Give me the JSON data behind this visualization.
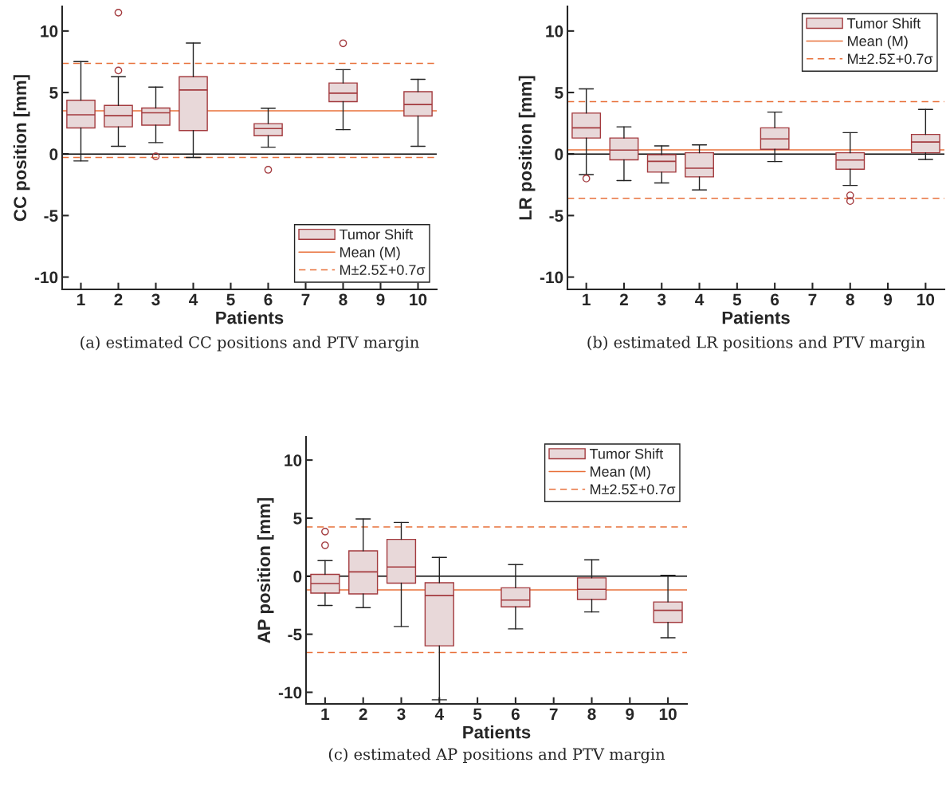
{
  "chart_data": [
    {
      "type": "box",
      "title": "(a) estimated CC positions and PTV margin",
      "xlabel": "Patients",
      "ylabel": "CC position [mm]",
      "categories": [
        "1",
        "2",
        "3",
        "4",
        "5",
        "6",
        "7",
        "8",
        "9",
        "10"
      ],
      "ylim": [
        -11,
        12
      ],
      "yticks": [
        -10,
        -5,
        0,
        5,
        10
      ],
      "legend": "bottom right",
      "grid": false,
      "series": [
        {
          "name": "Tumor Shift",
          "color": "#e8d8d9",
          "boxes": [
            {
              "low": -0.56,
              "q1": 2.12,
              "median": 3.19,
              "q3": 4.37,
              "high": 7.51
            },
            {
              "low": 0.63,
              "q1": 2.21,
              "median": 3.12,
              "q3": 3.95,
              "high": 6.28,
              "outliers": [
                6.79,
                11.49
              ]
            },
            {
              "low": 0.93,
              "q1": 2.35,
              "median": 3.35,
              "q3": 3.74,
              "high": 5.44,
              "outliers": [
                -0.19
              ]
            },
            {
              "low": -0.28,
              "q1": 1.91,
              "median": 5.21,
              "q3": 6.28,
              "high": 9.02
            },
            null,
            {
              "low": 0.56,
              "q1": 1.49,
              "median": 2.07,
              "q3": 2.47,
              "high": 3.72,
              "outliers": [
                -1.28
              ]
            },
            null,
            {
              "low": 1.98,
              "q1": 4.26,
              "median": 4.95,
              "q3": 5.77,
              "high": 6.86,
              "outliers": [
                9.0
              ]
            },
            null,
            {
              "low": 0.63,
              "q1": 3.09,
              "median": 4.02,
              "q3": 5.07,
              "high": 6.07
            }
          ]
        }
      ],
      "ref_lines": [
        {
          "axis": "y",
          "value": 0,
          "color": "#000000",
          "line_style": "solid"
        },
        {
          "axis": "y",
          "value": 3.51,
          "label": "Mean (M)",
          "color": "#e8703a",
          "line_style": "solid"
        },
        {
          "axis": "y",
          "value": 7.37,
          "label": "M±2.5Σ+0.7σ",
          "color": "#e8703a",
          "line_style": "dashed"
        },
        {
          "axis": "y",
          "value": -0.28,
          "color": "#e8703a",
          "line_style": "dashed"
        }
      ]
    },
    {
      "type": "box",
      "title": "(b) estimated LR positions and PTV margin",
      "xlabel": "Patients",
      "ylabel": "LR position [mm]",
      "categories": [
        "1",
        "2",
        "3",
        "4",
        "5",
        "6",
        "7",
        "8",
        "9",
        "10"
      ],
      "ylim": [
        -11,
        12
      ],
      "yticks": [
        -10,
        -5,
        0,
        5,
        10
      ],
      "legend": "top right",
      "grid": false,
      "series": [
        {
          "name": "Tumor Shift",
          "color": "#e8d8d9",
          "boxes": [
            {
              "low": -1.67,
              "q1": 1.3,
              "median": 2.13,
              "q3": 3.33,
              "high": 5.29,
              "outliers": [
                -1.99
              ]
            },
            {
              "low": -2.16,
              "q1": -0.47,
              "median": 0.32,
              "q3": 1.3,
              "high": 2.21
            },
            {
              "low": -2.35,
              "q1": -1.47,
              "median": -0.59,
              "q3": -0.05,
              "high": 0.66
            },
            {
              "low": -2.92,
              "q1": -1.86,
              "median": -1.15,
              "q3": 0.1,
              "high": 0.74
            },
            null,
            {
              "low": -0.61,
              "q1": 0.39,
              "median": 1.23,
              "q3": 2.13,
              "high": 3.41
            },
            null,
            {
              "low": -2.55,
              "q1": -1.23,
              "median": -0.49,
              "q3": 0.1,
              "high": 1.74,
              "outliers": [
                -3.36,
                -3.82
              ]
            },
            null,
            {
              "low": -0.44,
              "q1": 0.1,
              "median": 0.98,
              "q3": 1.59,
              "high": 3.63
            }
          ]
        }
      ],
      "ref_lines": [
        {
          "axis": "y",
          "value": 0,
          "color": "#000000",
          "line_style": "solid"
        },
        {
          "axis": "y",
          "value": 0.34,
          "label": "Mean (M)",
          "color": "#e8703a",
          "line_style": "solid"
        },
        {
          "axis": "y",
          "value": 4.26,
          "label": "M±2.5Σ+0.7σ",
          "color": "#e8703a",
          "line_style": "dashed"
        },
        {
          "axis": "y",
          "value": -3.6,
          "color": "#e8703a",
          "line_style": "dashed"
        }
      ]
    },
    {
      "type": "box",
      "title": "(c) estimated AP positions and PTV margin",
      "xlabel": "Patients",
      "ylabel": "AP position [mm]",
      "categories": [
        "1",
        "2",
        "3",
        "4",
        "5",
        "6",
        "7",
        "8",
        "9",
        "10"
      ],
      "ylim": [
        -11,
        12
      ],
      "yticks": [
        -10,
        -5,
        0,
        5,
        10
      ],
      "legend": "top right",
      "grid": false,
      "series": [
        {
          "name": "Tumor Shift",
          "color": "#e8d8d9",
          "boxes": [
            {
              "low": -2.52,
              "q1": -1.46,
              "median": -0.63,
              "q3": 0.16,
              "high": 1.34,
              "outliers": [
                2.66,
                3.84
              ]
            },
            {
              "low": -2.71,
              "q1": -1.53,
              "median": 0.37,
              "q3": 2.18,
              "high": 4.93
            },
            {
              "low": -4.33,
              "q1": -0.6,
              "median": 0.79,
              "q3": 3.17,
              "high": 4.63
            },
            {
              "low": -10.65,
              "q1": -6.0,
              "median": -1.67,
              "q3": -0.56,
              "high": 1.62
            },
            null,
            {
              "low": -4.54,
              "q1": -2.64,
              "median": -2.06,
              "q3": -1.0,
              "high": 1.0
            },
            null,
            {
              "low": -3.08,
              "q1": -2.01,
              "median": -1.13,
              "q3": -0.14,
              "high": 1.41
            },
            null,
            {
              "low": -5.3,
              "q1": -3.98,
              "median": -2.94,
              "q3": -2.22,
              "high": 0.07
            }
          ]
        }
      ],
      "ref_lines": [
        {
          "axis": "y",
          "value": 0,
          "color": "#000000",
          "line_style": "solid"
        },
        {
          "axis": "y",
          "value": -1.18,
          "label": "Mean (M)",
          "color": "#e8703a",
          "line_style": "solid"
        },
        {
          "axis": "y",
          "value": 4.24,
          "label": "M±2.5Σ+0.7σ",
          "color": "#e8703a",
          "line_style": "dashed"
        },
        {
          "axis": "y",
          "value": -6.57,
          "color": "#e8703a",
          "line_style": "dashed"
        }
      ]
    }
  ]
}
